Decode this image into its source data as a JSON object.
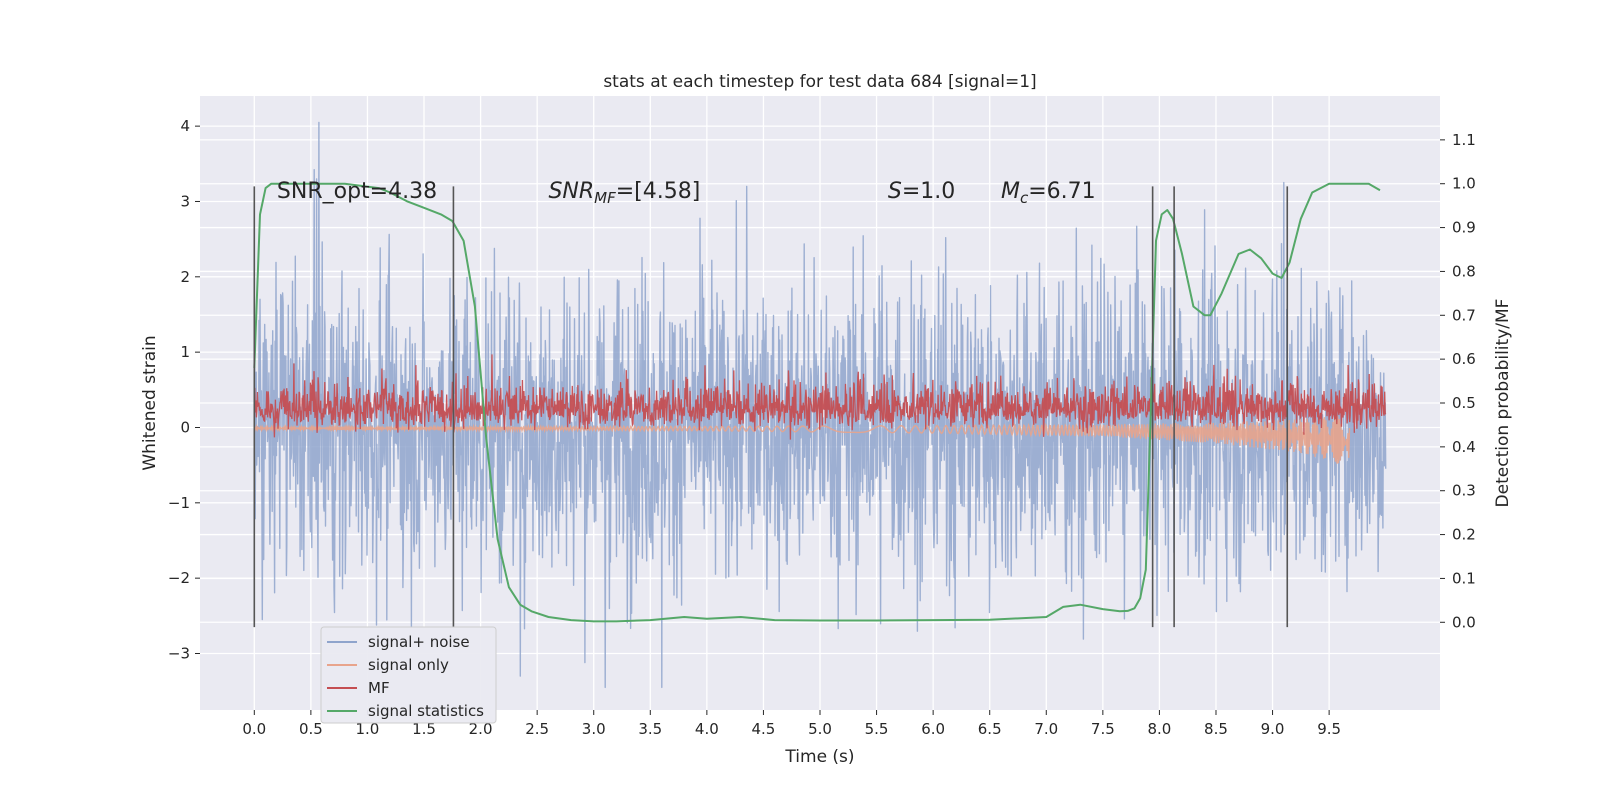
{
  "chart_data": {
    "type": "line",
    "title": "stats at each timestep for test data 684 [signal=1]",
    "xlabel": "Time (s)",
    "ylabel": "Whitened strain",
    "y2label": "Detection probability/MF",
    "xlim": [
      -0.48,
      10.48
    ],
    "ylim": [
      -3.75,
      4.4
    ],
    "y2lim": [
      -0.2,
      1.2
    ],
    "xticks": [
      0.0,
      0.5,
      1.0,
      1.5,
      2.0,
      2.5,
      3.0,
      3.5,
      4.0,
      4.5,
      5.0,
      5.5,
      6.0,
      6.5,
      7.0,
      7.5,
      8.0,
      8.5,
      9.0,
      9.5
    ],
    "xtick_labels": [
      "0.0",
      "0.5",
      "1.0",
      "1.5",
      "2.0",
      "2.5",
      "3.0",
      "3.5",
      "4.0",
      "4.5",
      "5.0",
      "5.5",
      "6.0",
      "6.5",
      "7.0",
      "7.5",
      "8.0",
      "8.5",
      "9.0",
      "9.5"
    ],
    "yticks": [
      4,
      3,
      2,
      1,
      0,
      -1,
      -2,
      -3
    ],
    "ytick_labels": [
      "4",
      "3",
      "2",
      "1",
      "0",
      "−1",
      "−2",
      "−3"
    ],
    "y2ticks": [
      1.1,
      1.0,
      0.9,
      0.8,
      0.7,
      0.6,
      0.5,
      0.4,
      0.3,
      0.2,
      0.1,
      0.0
    ],
    "y2tick_labels": [
      "1.1",
      "1.0",
      "0.9",
      "0.8",
      "0.7",
      "0.6",
      "0.5",
      "0.4",
      "0.3",
      "0.2",
      "0.1",
      "0.0"
    ],
    "grid": true,
    "legend_position": "lower-left",
    "annotations": [
      {
        "x": 0.2,
        "y": 3.15,
        "prefix": "SNR_opt=4.38",
        "sub": "",
        "suffix": "",
        "italic": false
      },
      {
        "x": 2.6,
        "y": 3.15,
        "prefix": "SNR",
        "sub": "MF",
        "suffix": "=[4.58]",
        "italic": true
      },
      {
        "x": 5.6,
        "y": 3.15,
        "prefix": "S",
        "sub": "",
        "suffix": "=1.0",
        "italic": true
      },
      {
        "x": 6.6,
        "y": 3.15,
        "prefix": "M",
        "sub": "c",
        "suffix": "=6.71",
        "italic": true
      }
    ],
    "vlines": [
      0.0,
      1.76,
      7.94,
      8.13,
      9.13
    ],
    "vline_range": [
      -2.65,
      3.2
    ],
    "series": [
      {
        "name": "signal+ noise",
        "color": "#8FA4CC",
        "axis": "left",
        "kind": "noise",
        "x_range": [
          0.0,
          10.0
        ],
        "center": 0.0,
        "spread": 1.0,
        "peaks": [
          [
            0.57,
            4.05
          ],
          [
            0.55,
            3.3
          ],
          [
            2.35,
            -3.3
          ],
          [
            3.1,
            -3.45
          ],
          [
            3.6,
            -3.45
          ],
          [
            9.1,
            3.25
          ],
          [
            4.35,
            3.2
          ]
        ]
      },
      {
        "name": "signal only",
        "color": "#E8A48C",
        "axis": "left",
        "kind": "chirp",
        "x_range": [
          0.0,
          9.68
        ],
        "envelope": [
          [
            0.0,
            0.02
          ],
          [
            4.0,
            0.03
          ],
          [
            6.0,
            0.05
          ],
          [
            7.5,
            0.08
          ],
          [
            8.5,
            0.14
          ],
          [
            9.2,
            0.22
          ],
          [
            9.55,
            0.3
          ],
          [
            9.68,
            0.45
          ]
        ]
      },
      {
        "name": "MF",
        "color": "#C44E52",
        "axis": "left",
        "kind": "band",
        "x_range": [
          0.0,
          10.0
        ],
        "center": 0.25,
        "spread": 0.12,
        "peaks": [
          [
            2.1,
            0.97
          ],
          [
            9.67,
            0.83
          ],
          [
            0.35,
            0.85
          ],
          [
            8.6,
            0.78
          ]
        ]
      },
      {
        "name": "signal statistics",
        "color": "#55A868",
        "axis": "right",
        "kind": "line",
        "x": [
          0.0,
          0.05,
          0.1,
          0.15,
          0.2,
          0.3,
          0.5,
          0.8,
          1.1,
          1.2,
          1.35,
          1.5,
          1.65,
          1.75,
          1.85,
          1.95,
          2.05,
          2.15,
          2.25,
          2.35,
          2.45,
          2.6,
          2.8,
          3.0,
          3.2,
          3.5,
          3.8,
          4.0,
          4.3,
          4.6,
          5.0,
          5.5,
          6.0,
          6.5,
          7.0,
          7.15,
          7.3,
          7.5,
          7.65,
          7.72,
          7.78,
          7.83,
          7.88,
          7.92,
          7.97,
          8.02,
          8.07,
          8.12,
          8.2,
          8.3,
          8.4,
          8.45,
          8.55,
          8.7,
          8.8,
          8.9,
          9.0,
          9.08,
          9.15,
          9.25,
          9.35,
          9.5,
          9.7,
          9.85,
          9.95
        ],
        "y": [
          0.58,
          0.93,
          0.99,
          1.0,
          1.0,
          1.0,
          1.0,
          1.0,
          0.99,
          0.98,
          0.96,
          0.945,
          0.93,
          0.915,
          0.87,
          0.72,
          0.42,
          0.19,
          0.08,
          0.04,
          0.025,
          0.012,
          0.005,
          0.002,
          0.002,
          0.005,
          0.012,
          0.008,
          0.012,
          0.005,
          0.004,
          0.004,
          0.005,
          0.006,
          0.012,
          0.035,
          0.04,
          0.03,
          0.025,
          0.026,
          0.032,
          0.055,
          0.12,
          0.45,
          0.87,
          0.93,
          0.94,
          0.92,
          0.84,
          0.72,
          0.7,
          0.7,
          0.75,
          0.84,
          0.85,
          0.83,
          0.795,
          0.785,
          0.82,
          0.92,
          0.98,
          1.0,
          1.0,
          1.0,
          0.985
        ]
      }
    ]
  }
}
